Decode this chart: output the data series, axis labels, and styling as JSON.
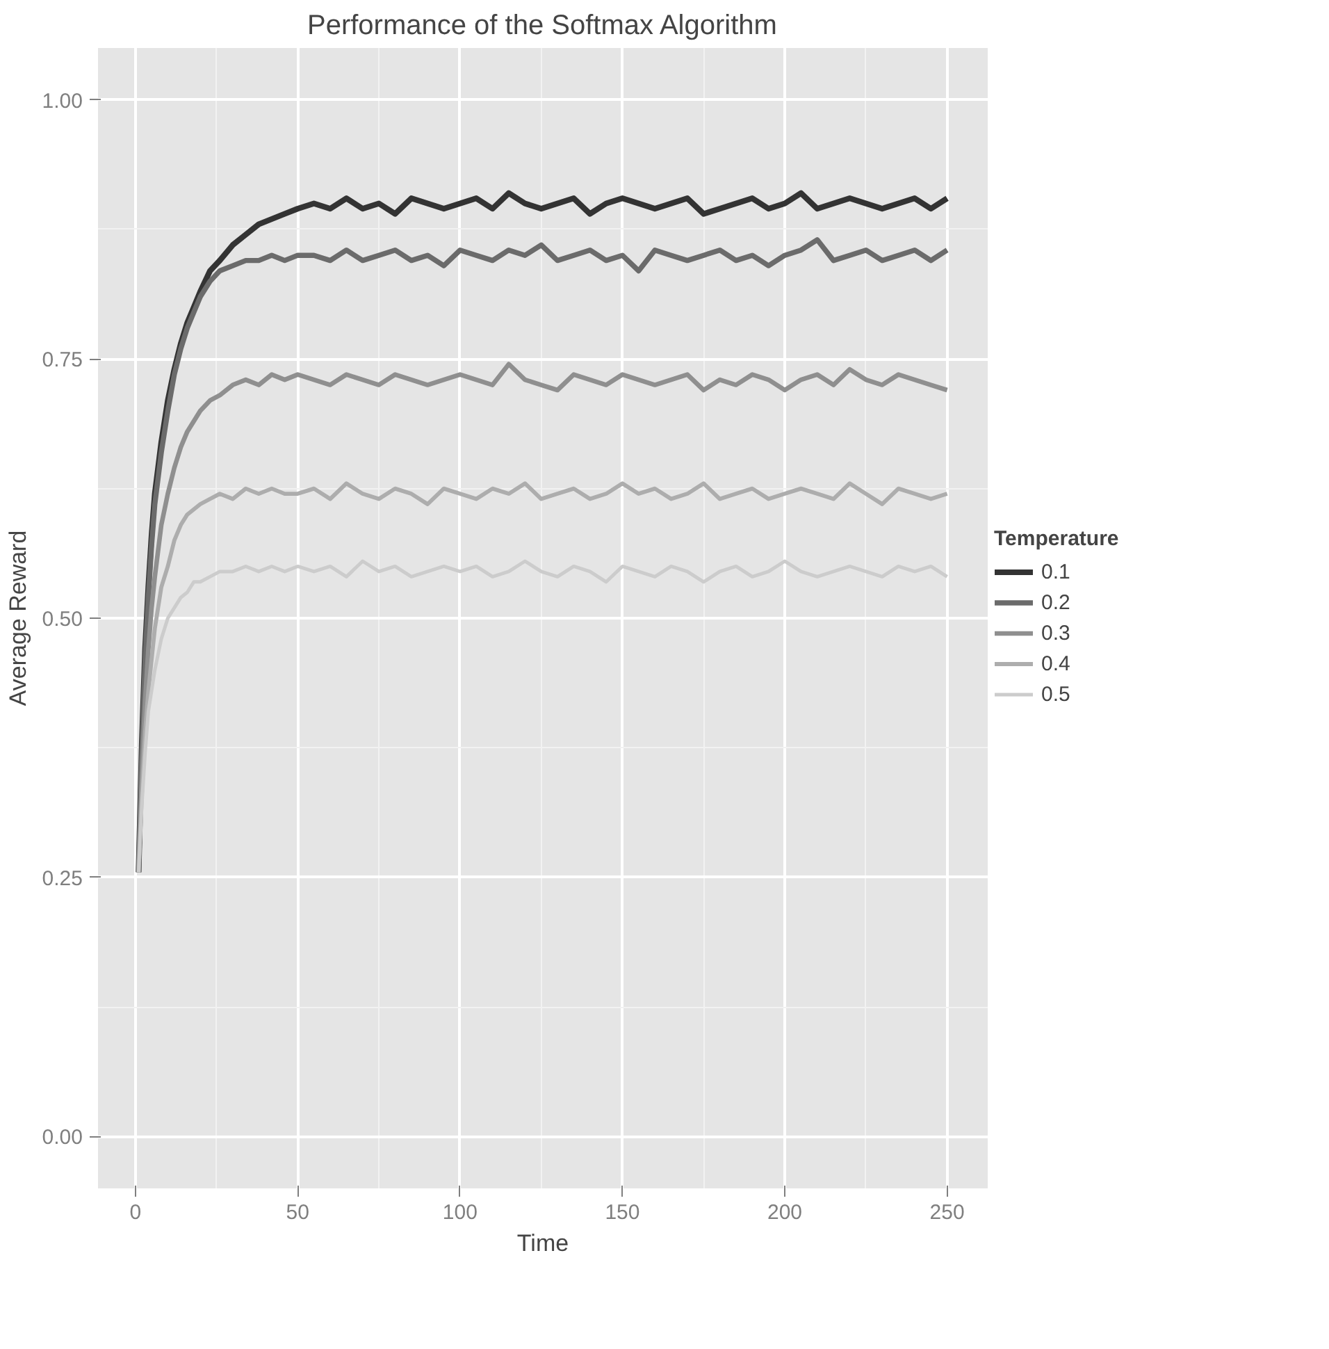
{
  "chart_data": {
    "type": "line",
    "title": "Performance of the Softmax Algorithm",
    "xlabel": "Time",
    "ylabel": "Average Reward",
    "legend_title": "Temperature",
    "x": [
      1,
      2,
      3,
      4,
      5,
      6,
      8,
      10,
      12,
      14,
      16,
      18,
      20,
      23,
      26,
      30,
      34,
      38,
      42,
      46,
      50,
      55,
      60,
      65,
      70,
      75,
      80,
      85,
      90,
      95,
      100,
      105,
      110,
      115,
      120,
      125,
      130,
      135,
      140,
      145,
      150,
      155,
      160,
      165,
      170,
      175,
      180,
      185,
      190,
      195,
      200,
      205,
      210,
      215,
      220,
      225,
      230,
      235,
      240,
      245,
      250
    ],
    "series": [
      {
        "name": "0.1",
        "color": "#333333",
        "values": [
          0.255,
          0.38,
          0.47,
          0.53,
          0.58,
          0.62,
          0.67,
          0.71,
          0.74,
          0.765,
          0.785,
          0.8,
          0.815,
          0.835,
          0.845,
          0.86,
          0.87,
          0.88,
          0.885,
          0.89,
          0.895,
          0.9,
          0.895,
          0.905,
          0.895,
          0.9,
          0.89,
          0.905,
          0.9,
          0.895,
          0.9,
          0.905,
          0.895,
          0.91,
          0.9,
          0.895,
          0.9,
          0.905,
          0.89,
          0.9,
          0.905,
          0.9,
          0.895,
          0.9,
          0.905,
          0.89,
          0.895,
          0.9,
          0.905,
          0.895,
          0.9,
          0.91,
          0.895,
          0.9,
          0.905,
          0.9,
          0.895,
          0.9,
          0.905,
          0.895,
          0.905
        ]
      },
      {
        "name": "0.2",
        "color": "#6b6b6b",
        "values": [
          0.255,
          0.37,
          0.46,
          0.52,
          0.57,
          0.61,
          0.66,
          0.7,
          0.735,
          0.76,
          0.78,
          0.795,
          0.81,
          0.825,
          0.835,
          0.84,
          0.845,
          0.845,
          0.85,
          0.845,
          0.85,
          0.85,
          0.845,
          0.855,
          0.845,
          0.85,
          0.855,
          0.845,
          0.85,
          0.84,
          0.855,
          0.85,
          0.845,
          0.855,
          0.85,
          0.86,
          0.845,
          0.85,
          0.855,
          0.845,
          0.85,
          0.835,
          0.855,
          0.85,
          0.845,
          0.85,
          0.855,
          0.845,
          0.85,
          0.84,
          0.85,
          0.855,
          0.865,
          0.845,
          0.85,
          0.855,
          0.845,
          0.85,
          0.855,
          0.845,
          0.855
        ]
      },
      {
        "name": "0.3",
        "color": "#8f8f8f",
        "values": [
          0.255,
          0.35,
          0.42,
          0.47,
          0.51,
          0.54,
          0.59,
          0.62,
          0.645,
          0.665,
          0.68,
          0.69,
          0.7,
          0.71,
          0.715,
          0.725,
          0.73,
          0.725,
          0.735,
          0.73,
          0.735,
          0.73,
          0.725,
          0.735,
          0.73,
          0.725,
          0.735,
          0.73,
          0.725,
          0.73,
          0.735,
          0.73,
          0.725,
          0.745,
          0.73,
          0.725,
          0.72,
          0.735,
          0.73,
          0.725,
          0.735,
          0.73,
          0.725,
          0.73,
          0.735,
          0.72,
          0.73,
          0.725,
          0.735,
          0.73,
          0.72,
          0.73,
          0.735,
          0.725,
          0.74,
          0.73,
          0.725,
          0.735,
          0.73,
          0.725,
          0.72
        ]
      },
      {
        "name": "0.4",
        "color": "#adadad",
        "values": [
          0.255,
          0.33,
          0.39,
          0.43,
          0.46,
          0.49,
          0.53,
          0.55,
          0.575,
          0.59,
          0.6,
          0.605,
          0.61,
          0.615,
          0.62,
          0.615,
          0.625,
          0.62,
          0.625,
          0.62,
          0.62,
          0.625,
          0.615,
          0.63,
          0.62,
          0.615,
          0.625,
          0.62,
          0.61,
          0.625,
          0.62,
          0.615,
          0.625,
          0.62,
          0.63,
          0.615,
          0.62,
          0.625,
          0.615,
          0.62,
          0.63,
          0.62,
          0.625,
          0.615,
          0.62,
          0.63,
          0.615,
          0.62,
          0.625,
          0.615,
          0.62,
          0.625,
          0.62,
          0.615,
          0.63,
          0.62,
          0.61,
          0.625,
          0.62,
          0.615,
          0.62
        ]
      },
      {
        "name": "0.5",
        "color": "#cccccc",
        "values": [
          0.255,
          0.32,
          0.37,
          0.41,
          0.43,
          0.45,
          0.48,
          0.5,
          0.51,
          0.52,
          0.525,
          0.535,
          0.535,
          0.54,
          0.545,
          0.545,
          0.55,
          0.545,
          0.55,
          0.545,
          0.55,
          0.545,
          0.55,
          0.54,
          0.555,
          0.545,
          0.55,
          0.54,
          0.545,
          0.55,
          0.545,
          0.55,
          0.54,
          0.545,
          0.555,
          0.545,
          0.54,
          0.55,
          0.545,
          0.535,
          0.55,
          0.545,
          0.54,
          0.55,
          0.545,
          0.535,
          0.545,
          0.55,
          0.54,
          0.545,
          0.555,
          0.545,
          0.54,
          0.545,
          0.55,
          0.545,
          0.54,
          0.55,
          0.545,
          0.55,
          0.54
        ]
      }
    ],
    "xlim": [
      -11.5,
      262.5
    ],
    "ylim": [
      -0.05,
      1.05
    ],
    "xticks": [
      0,
      50,
      100,
      150,
      200,
      250
    ],
    "yticks": [
      {
        "value": 0,
        "label": "0.00"
      },
      {
        "value": 0.25,
        "label": "0.25"
      },
      {
        "value": 0.5,
        "label": "0.50"
      },
      {
        "value": 0.75,
        "label": "0.75"
      },
      {
        "value": 1,
        "label": "1.00"
      }
    ],
    "grid": true,
    "legend": "right",
    "line_style": "solid"
  }
}
